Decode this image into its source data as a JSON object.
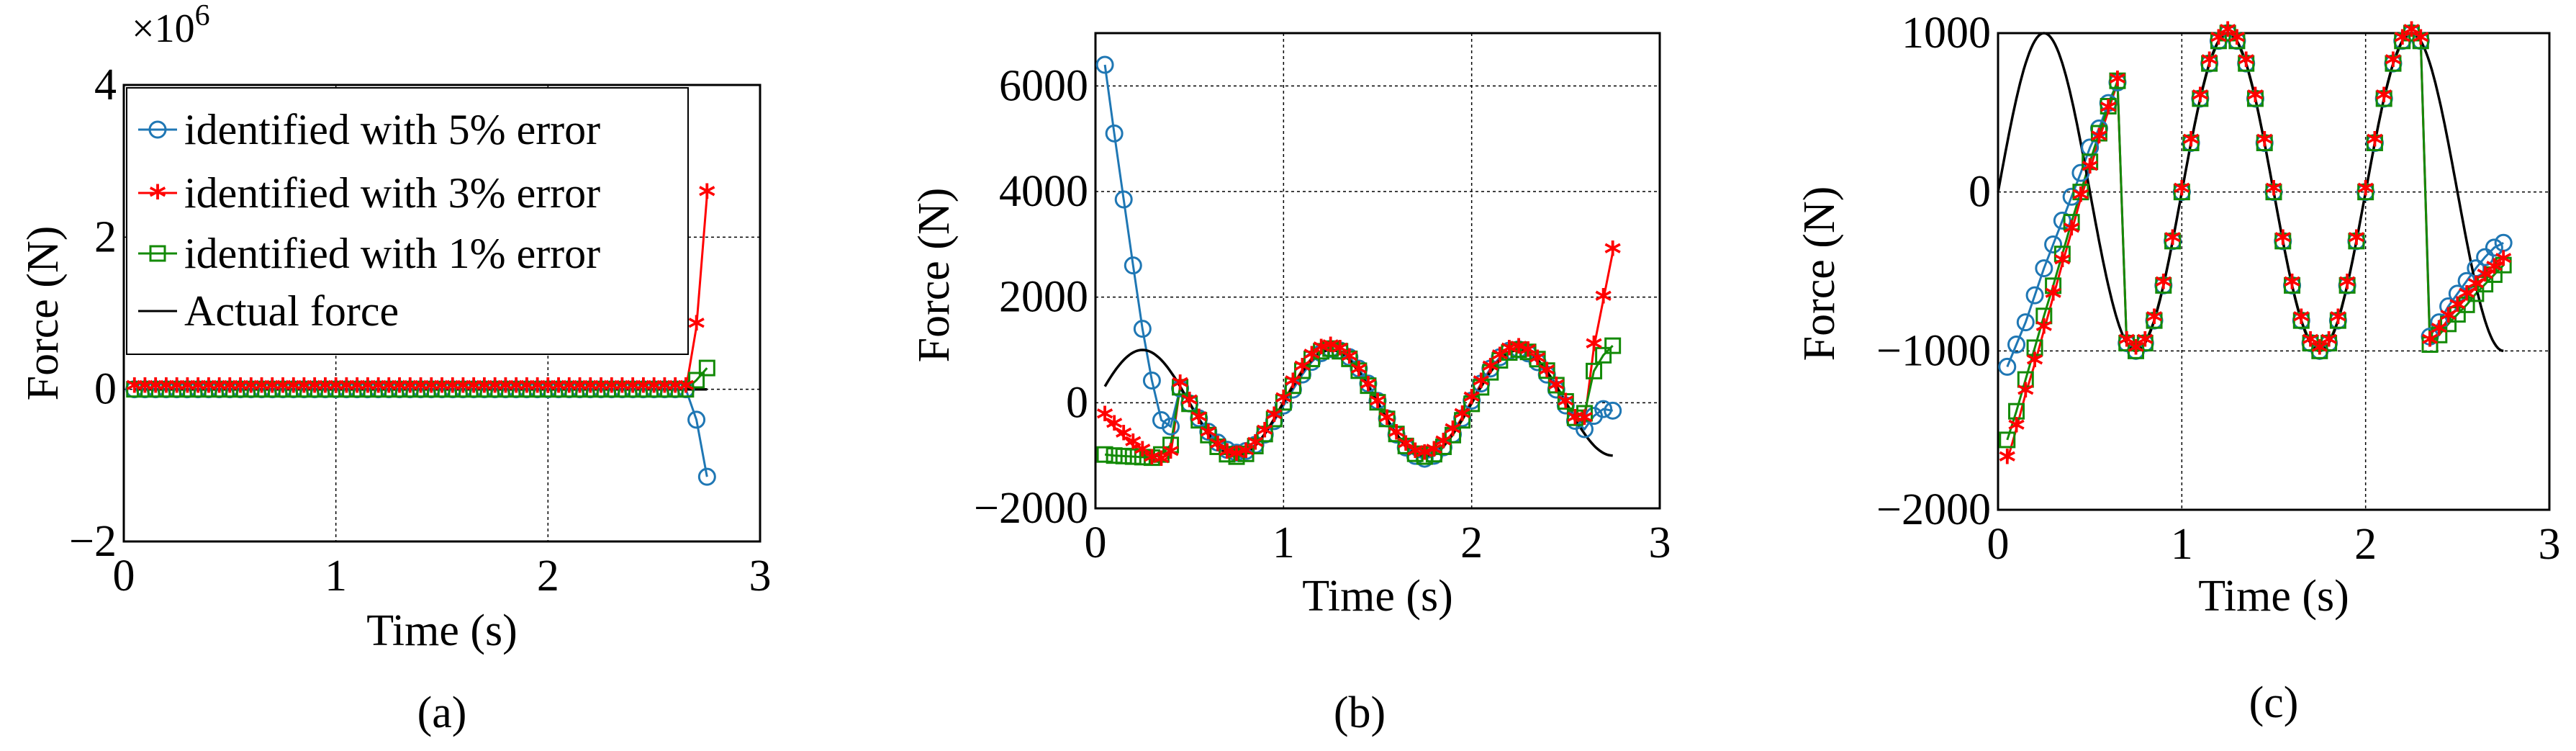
{
  "colors": {
    "series_5pct": "#1f77b4",
    "series_3pct": "#ff0000",
    "series_1pct": "#138a07",
    "actual": "#000000"
  },
  "chart_data": [
    {
      "id": "a",
      "type": "line",
      "caption": "(a)",
      "xlabel": "Time (s)",
      "ylabel": "Force (N)",
      "y_multiplier_label": "×10",
      "y_multiplier_exponent": "6",
      "xlim": [
        0,
        3
      ],
      "ylim": [
        -2,
        4
      ],
      "xticks": [
        0,
        1,
        2,
        3
      ],
      "xtick_labels": [
        "0",
        "1",
        "2",
        "3"
      ],
      "yticks": [
        -2,
        0,
        2,
        4
      ],
      "ytick_labels": [
        "−2",
        "0",
        "2",
        "4"
      ],
      "grid": true,
      "legend": "top-left",
      "legend_entries": [
        "identified with 5% error",
        "identified with 3% error",
        "identified with 1% error",
        "Actual force"
      ],
      "tail_points": {
        "5pct": [
          [
            2.65,
            0.0
          ],
          [
            2.7,
            -0.4
          ],
          [
            2.75,
            -1.15
          ]
        ],
        "3pct": [
          [
            2.65,
            0.0
          ],
          [
            2.7,
            0.82
          ],
          [
            2.75,
            2.55
          ]
        ],
        "1pct": [
          [
            2.65,
            0.0
          ],
          [
            2.7,
            0.12
          ],
          [
            2.75,
            0.28
          ]
        ]
      }
    },
    {
      "id": "b",
      "type": "line",
      "caption": "(b)",
      "xlabel": "Time (s)",
      "ylabel": "Force (N)",
      "xlim": [
        0,
        3
      ],
      "ylim": [
        -2000,
        7000
      ],
      "xticks": [
        0,
        1,
        2,
        3
      ],
      "xtick_labels": [
        "0",
        "1",
        "2",
        "3"
      ],
      "yticks": [
        -2000,
        0,
        2000,
        4000,
        6000
      ],
      "ytick_labels": [
        "−2000",
        "0",
        "2000",
        "4000",
        "6000"
      ],
      "grid": true,
      "start_points": {
        "5pct": [
          [
            0.05,
            6400
          ],
          [
            0.1,
            5100
          ],
          [
            0.15,
            3850
          ],
          [
            0.2,
            2600
          ],
          [
            0.25,
            1400
          ],
          [
            0.3,
            420
          ],
          [
            0.35,
            -330
          ],
          [
            0.4,
            -450
          ]
        ],
        "3pct": [
          [
            0.05,
            -280
          ],
          [
            0.1,
            -460
          ],
          [
            0.15,
            -640
          ],
          [
            0.2,
            -810
          ],
          [
            0.25,
            -950
          ],
          [
            0.3,
            -1100
          ],
          [
            0.35,
            -1130
          ],
          [
            0.4,
            -990
          ]
        ],
        "1pct": [
          [
            0.05,
            -980
          ],
          [
            0.1,
            -1000
          ],
          [
            0.15,
            -1010
          ],
          [
            0.2,
            -1020
          ],
          [
            0.25,
            -1030
          ],
          [
            0.3,
            -1040
          ],
          [
            0.35,
            -980
          ],
          [
            0.4,
            -800
          ]
        ]
      },
      "end_points": {
        "5pct": [
          [
            2.6,
            -500
          ],
          [
            2.65,
            -250
          ],
          [
            2.7,
            -120
          ],
          [
            2.75,
            -150
          ]
        ],
        "3pct": [
          [
            2.6,
            -350
          ],
          [
            2.65,
            1050
          ],
          [
            2.7,
            1950
          ],
          [
            2.75,
            2850
          ]
        ],
        "1pct": [
          [
            2.6,
            -200
          ],
          [
            2.65,
            600
          ],
          [
            2.7,
            900
          ],
          [
            2.75,
            1080
          ]
        ]
      }
    },
    {
      "id": "c",
      "type": "line",
      "caption": "(c)",
      "xlabel": "Time (s)",
      "ylabel": "Force (N)",
      "xlim": [
        0,
        3
      ],
      "ylim": [
        -2000,
        1000
      ],
      "xticks": [
        0,
        1,
        2,
        3
      ],
      "xtick_labels": [
        "0",
        "1",
        "2",
        "3"
      ],
      "yticks": [
        -2000,
        -1000,
        0,
        1000
      ],
      "ytick_labels": [
        "−2000",
        "−1000",
        "0",
        "1000"
      ],
      "grid": true,
      "start_points": {
        "5pct": [
          [
            0.05,
            -1100
          ],
          [
            0.1,
            -960
          ],
          [
            0.15,
            -820
          ],
          [
            0.2,
            -650
          ],
          [
            0.25,
            -480
          ],
          [
            0.3,
            -330
          ],
          [
            0.35,
            -180
          ],
          [
            0.4,
            -30
          ],
          [
            0.45,
            120
          ],
          [
            0.5,
            280
          ],
          [
            0.55,
            400
          ],
          [
            0.6,
            560
          ],
          [
            0.65,
            690
          ]
        ],
        "3pct": [
          [
            0.05,
            -1690
          ],
          [
            0.1,
            -1490
          ],
          [
            0.15,
            -1270
          ],
          [
            0.2,
            -1080
          ],
          [
            0.25,
            -870
          ],
          [
            0.3,
            -660
          ],
          [
            0.35,
            -450
          ],
          [
            0.4,
            -250
          ],
          [
            0.45,
            -40
          ],
          [
            0.5,
            140
          ],
          [
            0.55,
            330
          ],
          [
            0.6,
            510
          ],
          [
            0.65,
            690
          ]
        ],
        "1pct": [
          [
            0.05,
            -1560
          ],
          [
            0.1,
            -1380
          ],
          [
            0.15,
            -1180
          ],
          [
            0.2,
            -980
          ],
          [
            0.25,
            -780
          ],
          [
            0.3,
            -590
          ],
          [
            0.35,
            -390
          ],
          [
            0.4,
            -190
          ],
          [
            0.45,
            0
          ],
          [
            0.5,
            190
          ],
          [
            0.55,
            370
          ],
          [
            0.6,
            540
          ],
          [
            0.65,
            700
          ]
        ]
      },
      "end_points": {
        "5pct": [
          [
            2.35,
            -910
          ],
          [
            2.4,
            -820
          ],
          [
            2.45,
            -720
          ],
          [
            2.5,
            -640
          ],
          [
            2.55,
            -560
          ],
          [
            2.6,
            -480
          ],
          [
            2.65,
            -410
          ],
          [
            2.7,
            -350
          ],
          [
            2.75,
            -320
          ]
        ],
        "3pct": [
          [
            2.35,
            -950
          ],
          [
            2.4,
            -880
          ],
          [
            2.45,
            -800
          ],
          [
            2.5,
            -730
          ],
          [
            2.55,
            -660
          ],
          [
            2.6,
            -600
          ],
          [
            2.65,
            -540
          ],
          [
            2.7,
            -490
          ],
          [
            2.75,
            -440
          ]
        ],
        "1pct": [
          [
            2.35,
            -960
          ],
          [
            2.4,
            -900
          ],
          [
            2.45,
            -830
          ],
          [
            2.5,
            -770
          ],
          [
            2.55,
            -710
          ],
          [
            2.6,
            -640
          ],
          [
            2.65,
            -580
          ],
          [
            2.7,
            -520
          ],
          [
            2.75,
            -460
          ]
        ]
      },
      "actual_start_end": {
        "t0": 0.0,
        "t1": 2.75,
        "note": "actual force follows 1000*sin(2*pi*t) over 0..2.75 s"
      }
    }
  ]
}
